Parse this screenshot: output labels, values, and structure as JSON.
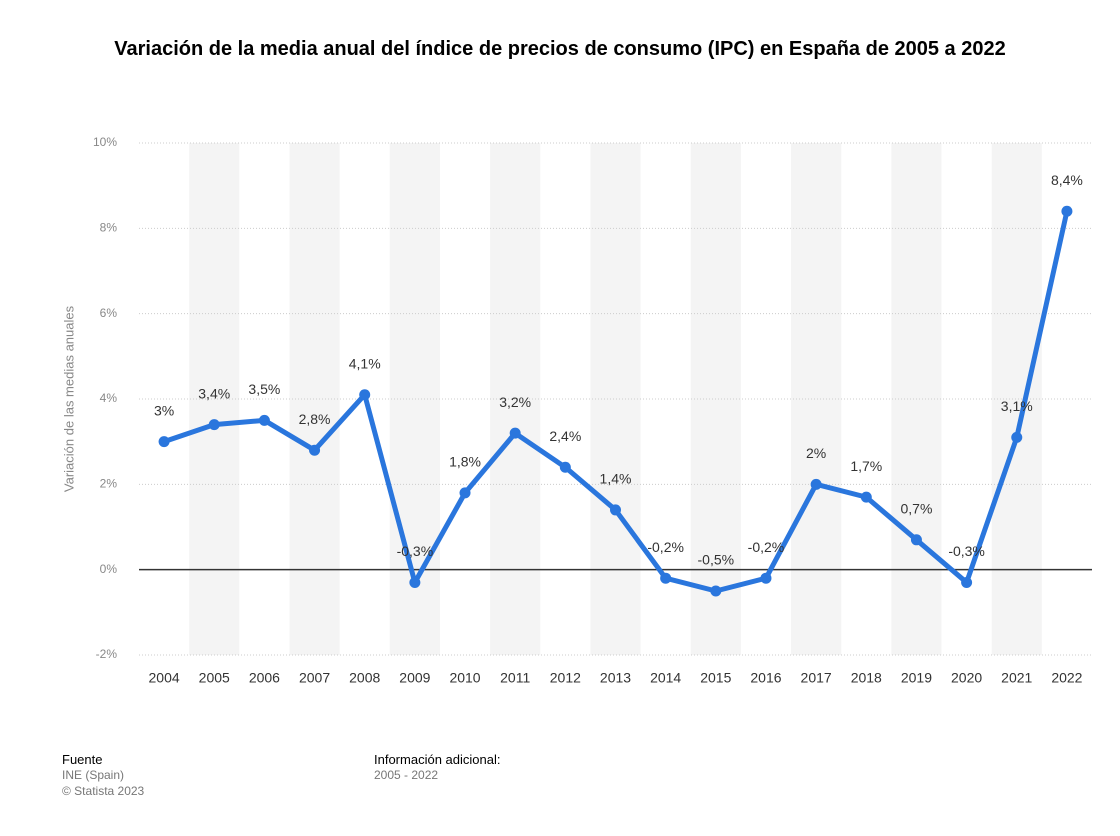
{
  "chart_data": {
    "type": "line",
    "title": "Variación de la media anual del índice de precios de consumo (IPC) en España de 2005 a 2022",
    "ylabel": "Variación de las medias anuales",
    "categories": [
      "2004",
      "2005",
      "2006",
      "2007",
      "2008",
      "2009",
      "2010",
      "2011",
      "2012",
      "2013",
      "2014",
      "2015",
      "2016",
      "2017",
      "2018",
      "2019",
      "2020",
      "2021",
      "2022"
    ],
    "series": [
      {
        "name": "IPC",
        "color": "#2a76dd",
        "values": [
          3,
          3.4,
          3.5,
          2.8,
          4.1,
          -0.3,
          1.8,
          3.2,
          2.4,
          1.4,
          -0.2,
          -0.5,
          -0.2,
          2,
          1.7,
          0.7,
          -0.3,
          3.1,
          8.4
        ],
        "value_labels": [
          "3%",
          "3,4%",
          "3,5%",
          "2,8%",
          "4,1%",
          "-0,3%",
          "1,8%",
          "3,2%",
          "2,4%",
          "1,4%",
          "-0,2%",
          "-0,5%",
          "-0,2%",
          "2%",
          "1,7%",
          "0,7%",
          "-0,3%",
          "3,1%",
          "8,4%"
        ]
      }
    ],
    "ylim": [
      -2,
      10
    ],
    "yticks": [
      {
        "value": -2,
        "label": "-2%"
      },
      {
        "value": 0,
        "label": "0%"
      },
      {
        "value": 2,
        "label": "2%"
      },
      {
        "value": 4,
        "label": "4%"
      },
      {
        "value": 6,
        "label": "6%"
      },
      {
        "value": 8,
        "label": "8%"
      },
      {
        "value": 10,
        "label": "10%"
      }
    ],
    "grid": true
  },
  "footer": {
    "source_title": "Fuente",
    "source": "INE (Spain)",
    "copyright": "© Statista 2023",
    "info_title": "Información adicional:",
    "info": "2005 - 2022"
  }
}
